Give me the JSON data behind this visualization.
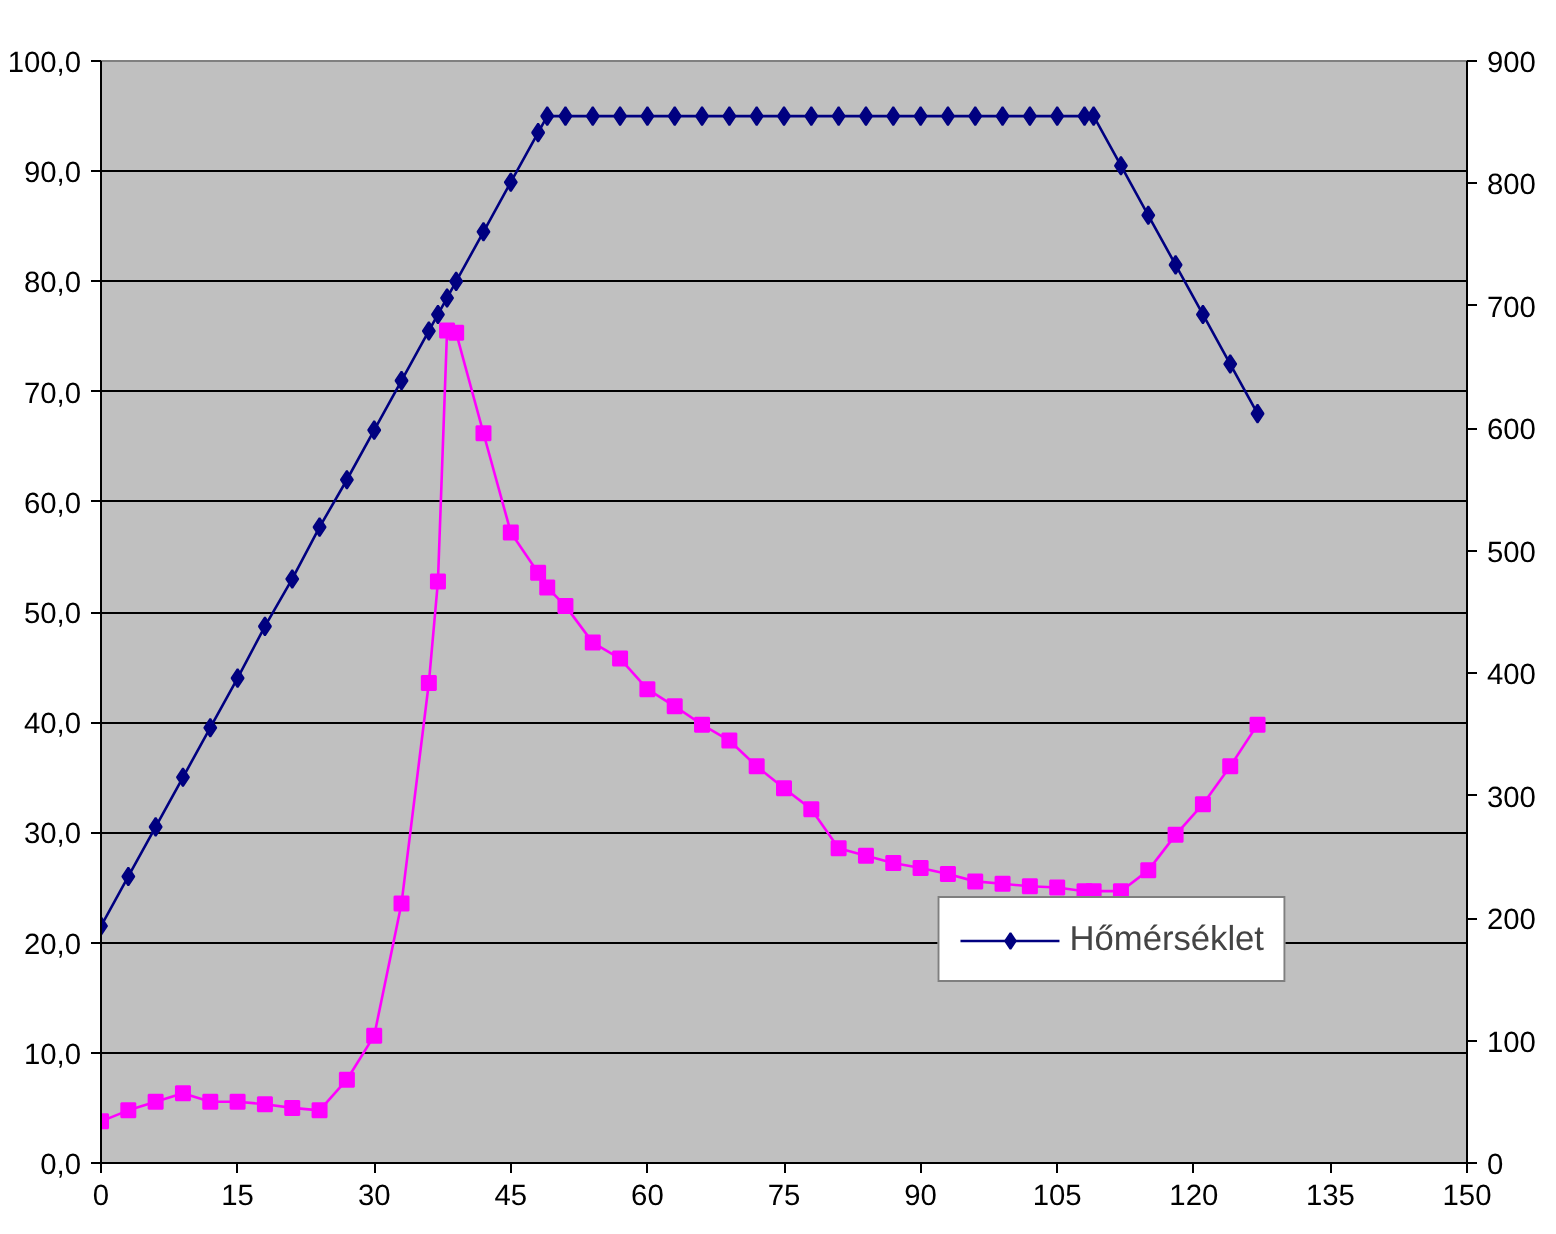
{
  "chart_data": {
    "type": "line",
    "xlim": [
      0,
      150
    ],
    "xticks": [
      0,
      15,
      30,
      45,
      60,
      75,
      90,
      105,
      120,
      135,
      150
    ],
    "ylim": [
      0,
      100
    ],
    "yticks": [
      {
        "value": 0,
        "label": "0,0"
      },
      {
        "value": 10,
        "label": "10,0"
      },
      {
        "value": 20,
        "label": "20,0"
      },
      {
        "value": 30,
        "label": "30,0"
      },
      {
        "value": 40,
        "label": "40,0"
      },
      {
        "value": 50,
        "label": "50,0"
      },
      {
        "value": 60,
        "label": "60,0"
      },
      {
        "value": 70,
        "label": "70,0"
      },
      {
        "value": 80,
        "label": "80,0"
      },
      {
        "value": 90,
        "label": "90,0"
      },
      {
        "value": 100,
        "label": "100,0"
      }
    ],
    "y2lim": [
      0,
      900
    ],
    "y2ticks": [
      0,
      100,
      200,
      300,
      400,
      500,
      600,
      700,
      800,
      900
    ],
    "grid": "y",
    "legend": "bottom right",
    "series": [
      {
        "name": "Hőmérséklet",
        "color": "#000080",
        "marker": "diamond",
        "x": [
          0,
          3,
          6,
          9,
          12,
          15,
          18,
          21,
          24,
          27,
          30,
          33,
          36,
          37,
          38,
          39,
          42,
          45,
          48,
          49,
          51,
          54,
          57,
          60,
          63,
          66,
          69,
          72,
          75,
          78,
          81,
          84,
          87,
          90,
          93,
          96,
          99,
          102,
          105,
          108,
          109,
          112,
          115,
          118,
          121,
          124,
          127
        ],
        "values": [
          21.5,
          26,
          30.5,
          35,
          39.5,
          44,
          48.7,
          53,
          57.7,
          62,
          66.5,
          71,
          75.5,
          77,
          78.5,
          80,
          84.5,
          89,
          93.5,
          95,
          95,
          95,
          95,
          95,
          95,
          95,
          95,
          95,
          95,
          95,
          95,
          95,
          95,
          95,
          95,
          95,
          95,
          95,
          95,
          95,
          95,
          90.5,
          86,
          81.5,
          77,
          72.5,
          68
        ]
      },
      {
        "color": "#ff00ff",
        "marker": "square",
        "axis": "y2",
        "x": [
          0,
          3,
          6,
          9,
          12,
          15,
          18,
          21,
          24,
          27,
          30,
          33,
          36,
          37,
          38,
          39,
          42,
          45,
          48,
          49,
          51,
          54,
          57,
          60,
          63,
          66,
          69,
          72,
          75,
          78,
          81,
          84,
          87,
          90,
          93,
          96,
          99,
          102,
          105,
          108,
          109,
          112,
          115,
          118,
          121,
          124,
          127
        ],
        "values": [
          34,
          43,
          50,
          57,
          50,
          50,
          48,
          45,
          43,
          68,
          104,
          212,
          392,
          475,
          680,
          678,
          596,
          515,
          482,
          470,
          455,
          425,
          412,
          387,
          373,
          358,
          345,
          324,
          306,
          289,
          257,
          251,
          245,
          241,
          236,
          230,
          228,
          226,
          225,
          222,
          222,
          222,
          239,
          268,
          293,
          324,
          358
        ]
      }
    ]
  }
}
